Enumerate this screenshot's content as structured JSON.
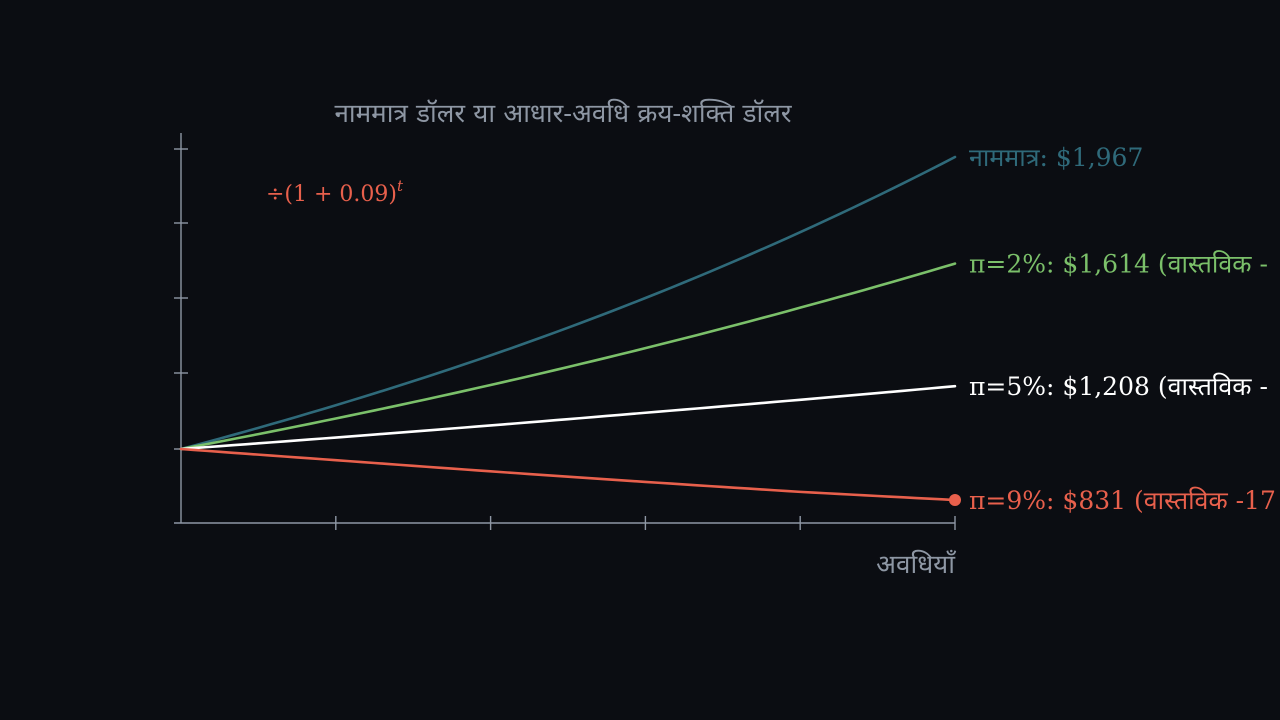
{
  "chart_data": {
    "type": "line",
    "title": "नाममात्र डॉलर या आधार-अवधि क्रय-शक्ति डॉलर",
    "xlabel": "अवधियाँ",
    "ylabel": "",
    "annotation": "÷(1 + 0.09)",
    "annotation_exponent": "t",
    "annotation_color": "#e8604c",
    "start_value": 1000,
    "periods": 5,
    "x": [
      0,
      1,
      2,
      3,
      4,
      5
    ],
    "ylim": [
      700,
      2000
    ],
    "grid": false,
    "series": [
      {
        "name": "नाममात्र",
        "label": "नाममात्र: $1,967",
        "color": "#2f6a7a",
        "values": [
          1000,
          1145,
          1310,
          1500,
          1718,
          1967
        ]
      },
      {
        "name": "π=2%",
        "label": "π=2%: $1,614 (वास्तविक -",
        "color": "#7bc06a",
        "values": [
          1000,
          1101,
          1212,
          1334,
          1468,
          1614
        ]
      },
      {
        "name": "π=5%",
        "label": "π=5%: $1,208 (वास्तविक -",
        "color": "#ffffff",
        "values": [
          1000,
          1038,
          1078,
          1120,
          1163,
          1208
        ]
      },
      {
        "name": "π=9%",
        "label": "π=9%: $831 (वास्तविक -17",
        "color": "#e8604c",
        "values": [
          1000,
          963,
          926,
          891,
          858,
          831
        ],
        "end_marker": true
      }
    ]
  }
}
